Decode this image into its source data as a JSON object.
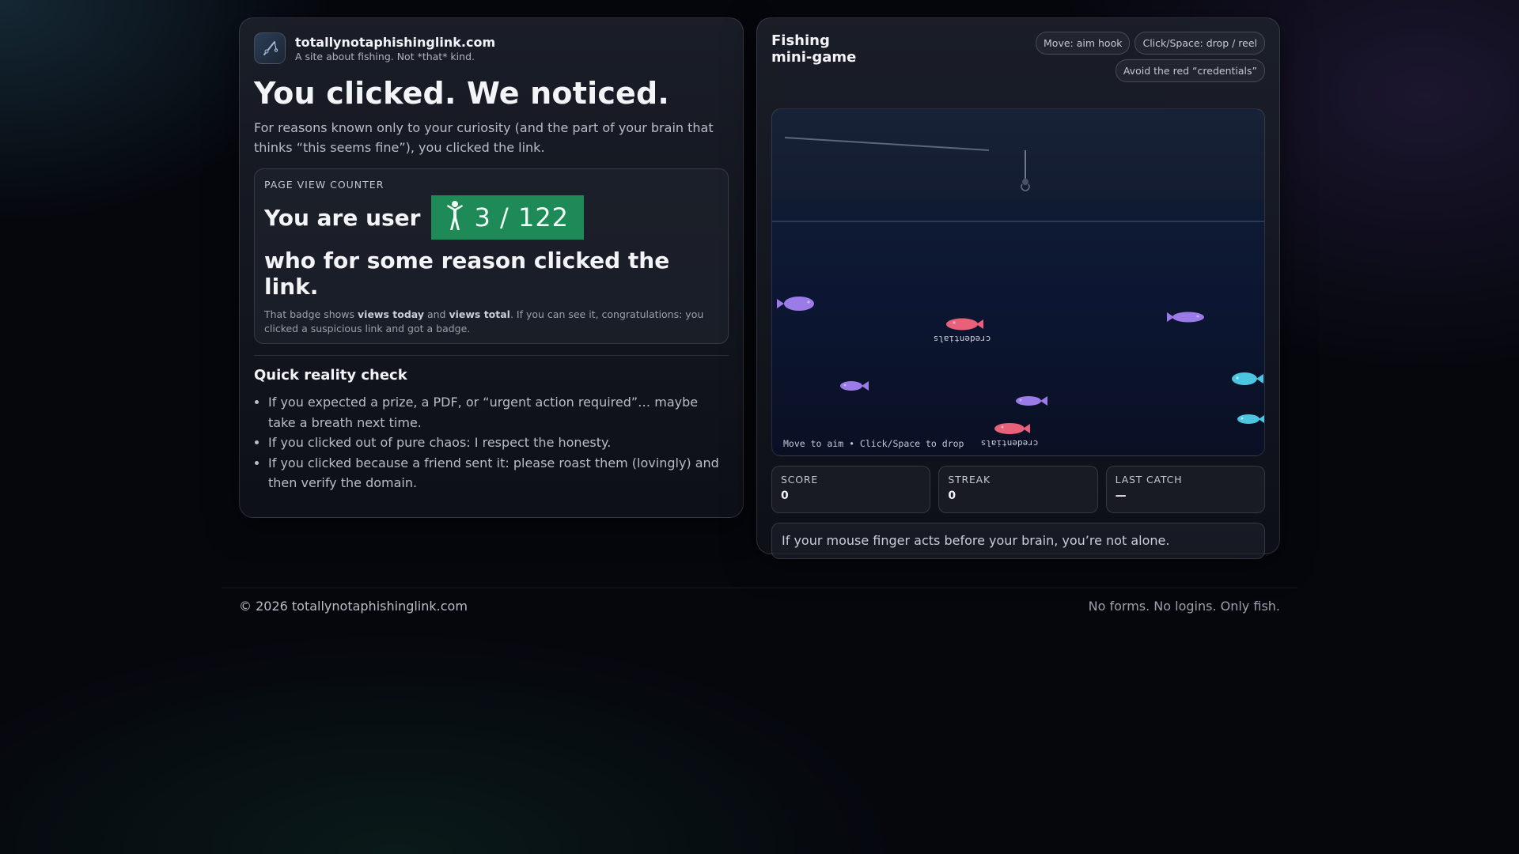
{
  "brand": {
    "name": "totallynotaphishinglink.com",
    "tagline": "A site about fishing. Not *that* kind.",
    "logo_icon": "fishing-pole-icon"
  },
  "hero": {
    "title": "You clicked. We noticed.",
    "lead": "For reasons known only to your curiosity (and the part of your brain that thinks “this seems fine”), you clicked the link."
  },
  "counter": {
    "title": "PAGE VIEW COUNTER",
    "prefix": "You are user",
    "badge_text": "3 / 122",
    "views_today": 3,
    "views_total": 122,
    "badge_color": "#1e8a58",
    "suffix": "who for some reason clicked the link.",
    "note_a": "That badge shows ",
    "note_b": "views today",
    "note_c": " and ",
    "note_d": "views total",
    "note_e": ". If you can see it, congratulations: you clicked a suspicious link and got a badge."
  },
  "reality": {
    "title": "Quick reality check",
    "items": [
      "If you expected a prize, a PDF, or “urgent action required”… maybe take a breath next time.",
      "If you clicked out of pure chaos: I respect the honesty.",
      "If you clicked because a friend sent it: please roast them (lovingly) and then verify the domain."
    ]
  },
  "game": {
    "title": "Fishing mini-game",
    "chips": [
      "Move: aim hook",
      "Click/Space: drop / reel",
      "Avoid the red “credentials”"
    ],
    "canvas_hint": "Move to aim • Click/Space to drop",
    "fish_label": "credentials",
    "colors": {
      "purple_fish": "#9b7be8",
      "red_fish": "#e8607a",
      "cyan_fish": "#4cc6e0"
    },
    "stats": [
      {
        "label": "SCORE",
        "value": "0"
      },
      {
        "label": "STREAK",
        "value": "0"
      },
      {
        "label": "LAST CATCH",
        "value": "—"
      }
    ],
    "message": "If your mouse finger acts before your brain, you’re not alone."
  },
  "footer": {
    "copyright": "© 2026 totallynotaphishinglink.com",
    "slogan": "No forms. No logins. Only fish."
  }
}
